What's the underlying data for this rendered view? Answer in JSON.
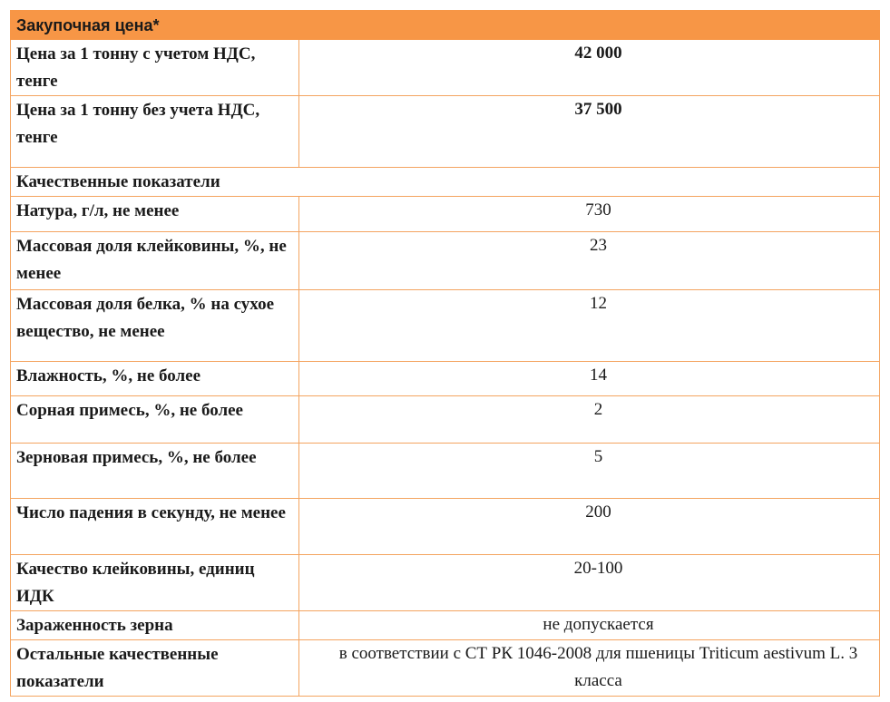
{
  "table": {
    "header": "Закупочная цена*",
    "rows": [
      {
        "label": "Цена за 1 тонну с учетом НДС, тенге",
        "value": "42 000"
      },
      {
        "label": "Цена за 1 тонну без учета НДС, тенге",
        "value": "37 500"
      },
      {
        "section": "Качественные показатели"
      },
      {
        "label": "Натура, г/л, не менее",
        "value": "730"
      },
      {
        "label": "Массовая доля клейковины, %, не менее",
        "value": "23"
      },
      {
        "label": "Массовая доля белка, % на сухое вещество, не менее",
        "value": "12"
      },
      {
        "label": "Влажность, %, не более",
        "value": "14"
      },
      {
        "label": "Сорная примесь, %, не более",
        "value": "2"
      },
      {
        "label": "Зерновая примесь, %, не более",
        "value": "5"
      },
      {
        "label": "Число падения в секунду, не менее",
        "value": "200"
      },
      {
        "label": "Качество клейковины, единиц ИДК",
        "value": "20-100"
      },
      {
        "label": "Зараженность зерна",
        "value": "не допускается"
      },
      {
        "label": "Остальные качественные показатели",
        "value": "в соответствии с СТ РК 1046-2008 для пшеницы Triticum aestivum L. 3 класса"
      }
    ]
  }
}
